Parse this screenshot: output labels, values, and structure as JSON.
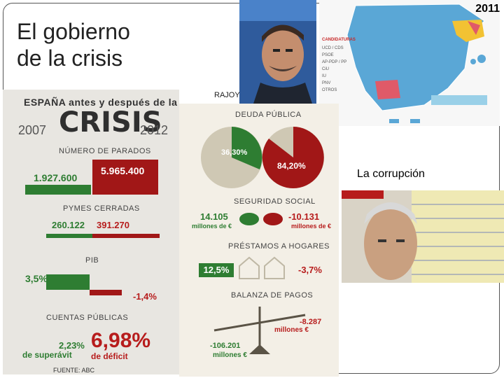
{
  "slide": {
    "title_line1": "El gobierno",
    "title_line2": "de la crisis",
    "year": "2011",
    "rajoy_label": "RAJOY",
    "corruption_label": "La corrupción",
    "source": "FUENTE: ABC"
  },
  "left_infographic": {
    "heading": "ESPAÑA antes y después de la",
    "crisis": "CRISIS",
    "year_from": "2007",
    "year_to": "2012",
    "unemployed": {
      "label": "NÚMERO DE PARADOS",
      "before": "1.927.600",
      "after": "5.965.400"
    },
    "smes": {
      "label": "PYMES CERRADAS",
      "before": "260.122",
      "after": "391.270"
    },
    "gdp": {
      "label": "PIB",
      "before": "3,5%",
      "after": "-1,4%"
    },
    "accounts": {
      "label": "CUENTAS PÚBLICAS",
      "before": "2,23%",
      "before_note": "de superávit",
      "after": "6,98%",
      "after_note": "de déficit"
    }
  },
  "middle_infographic": {
    "debt": {
      "label": "DEUDA PÚBLICA",
      "before": "36,30%",
      "after": "84,20%"
    },
    "social_security": {
      "label": "SEGURIDAD SOCIAL",
      "before": "14.105",
      "before_unit": "millones de €",
      "after": "-10.131",
      "after_unit": "millones de €"
    },
    "loans": {
      "label": "PRÉSTAMOS A HOGARES",
      "before": "12,5%",
      "after": "-3,7%"
    },
    "balance": {
      "label": "BALANZA DE PAGOS",
      "before": "-106.201",
      "before_unit": "millones €",
      "after": "-8.287",
      "after_unit": "millones €"
    }
  },
  "map": {
    "legend_title": "CANDIDATURAS",
    "legend": [
      "UCD / CDS",
      "PSOE",
      "AP-PDP / PP",
      "CiU",
      "IU",
      "PNV",
      "OTROS"
    ],
    "colors": {
      "pp": "#5aa7d6",
      "psoe": "#e05a68",
      "ciu": "#f2c233"
    }
  },
  "colors": {
    "green": "#2e7d32",
    "red": "#a11717"
  }
}
